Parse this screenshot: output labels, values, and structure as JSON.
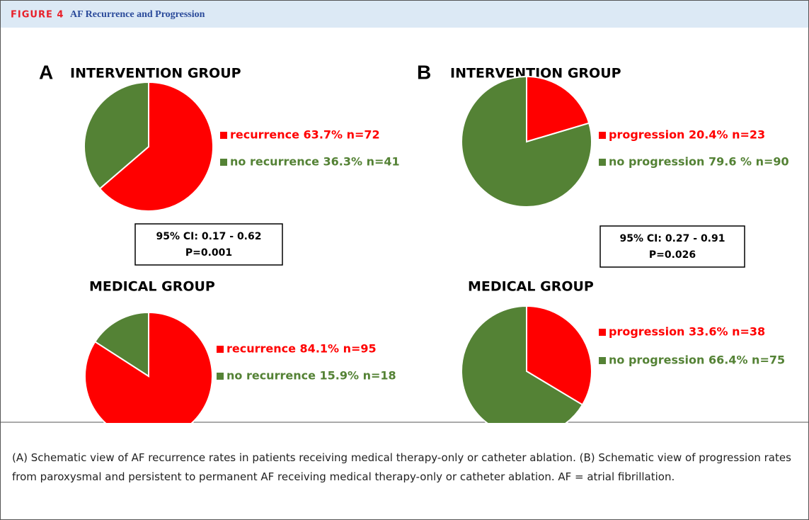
{
  "header": {
    "figure_label": "FIGURE 4",
    "figure_title": "AF Recurrence and Progression"
  },
  "panels": [
    {
      "letter": "A",
      "ci": "95% CI: 0.17 - 0.62",
      "p": "P=0.001"
    },
    {
      "letter": "B",
      "ci": "95% CI: 0.27 - 0.91",
      "p": "P=0.026"
    }
  ],
  "chart_data": [
    {
      "type": "pie",
      "title": "INTERVENTION GROUP",
      "categories": [
        "recurrence 63.7% n=72",
        "no recurrence 36.3% n=41"
      ],
      "values": [
        63.7,
        36.3
      ],
      "colors": [
        "#ff0000",
        "#548235"
      ]
    },
    {
      "type": "pie",
      "title": "MEDICAL GROUP",
      "categories": [
        "recurrence 84.1% n=95",
        "no recurrence 15.9% n=18"
      ],
      "values": [
        84.1,
        15.9
      ],
      "colors": [
        "#ff0000",
        "#548235"
      ]
    },
    {
      "type": "pie",
      "title": "INTERVENTION GROUP",
      "categories": [
        "progression 20.4% n=23",
        "no progression 79.6 % n=90"
      ],
      "values": [
        20.4,
        79.6
      ],
      "colors": [
        "#ff0000",
        "#548235"
      ]
    },
    {
      "type": "pie",
      "title": "MEDICAL GROUP",
      "categories": [
        "progression 33.6% n=38",
        "no progression 66.4% n=75"
      ],
      "values": [
        33.6,
        66.4
      ],
      "colors": [
        "#ff0000",
        "#548235"
      ]
    }
  ],
  "caption": "(A) Schematic view of AF recurrence rates in patients receiving medical therapy-only or catheter ablation. (B) Schematic view of progression rates from paroxysmal and persistent to permanent AF receiving medical therapy-only or catheter ablation. AF = atrial fibrillation."
}
